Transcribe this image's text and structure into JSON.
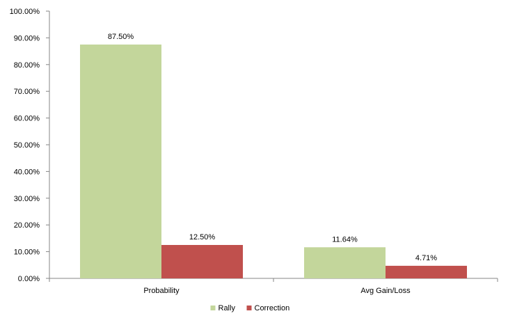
{
  "chart_data": {
    "type": "bar",
    "categories": [
      "Probability",
      "Avg Gain/Loss"
    ],
    "series": [
      {
        "name": "Rally",
        "values": [
          87.5,
          11.64
        ],
        "labels": [
          "87.50%",
          "11.64%"
        ],
        "color": "#c3d69b"
      },
      {
        "name": "Correction",
        "values": [
          12.5,
          4.71
        ],
        "labels": [
          "12.50%",
          "4.71%"
        ],
        "color": "#c0504d"
      }
    ],
    "ylim": [
      0,
      100
    ],
    "ytick_step": 10,
    "ytick_labels": [
      "0.00%",
      "10.00%",
      "20.00%",
      "30.00%",
      "40.00%",
      "50.00%",
      "60.00%",
      "70.00%",
      "80.00%",
      "90.00%",
      "100.00%"
    ],
    "legend_position": "bottom",
    "grid": false,
    "title": "",
    "xlabel": "",
    "ylabel": ""
  }
}
